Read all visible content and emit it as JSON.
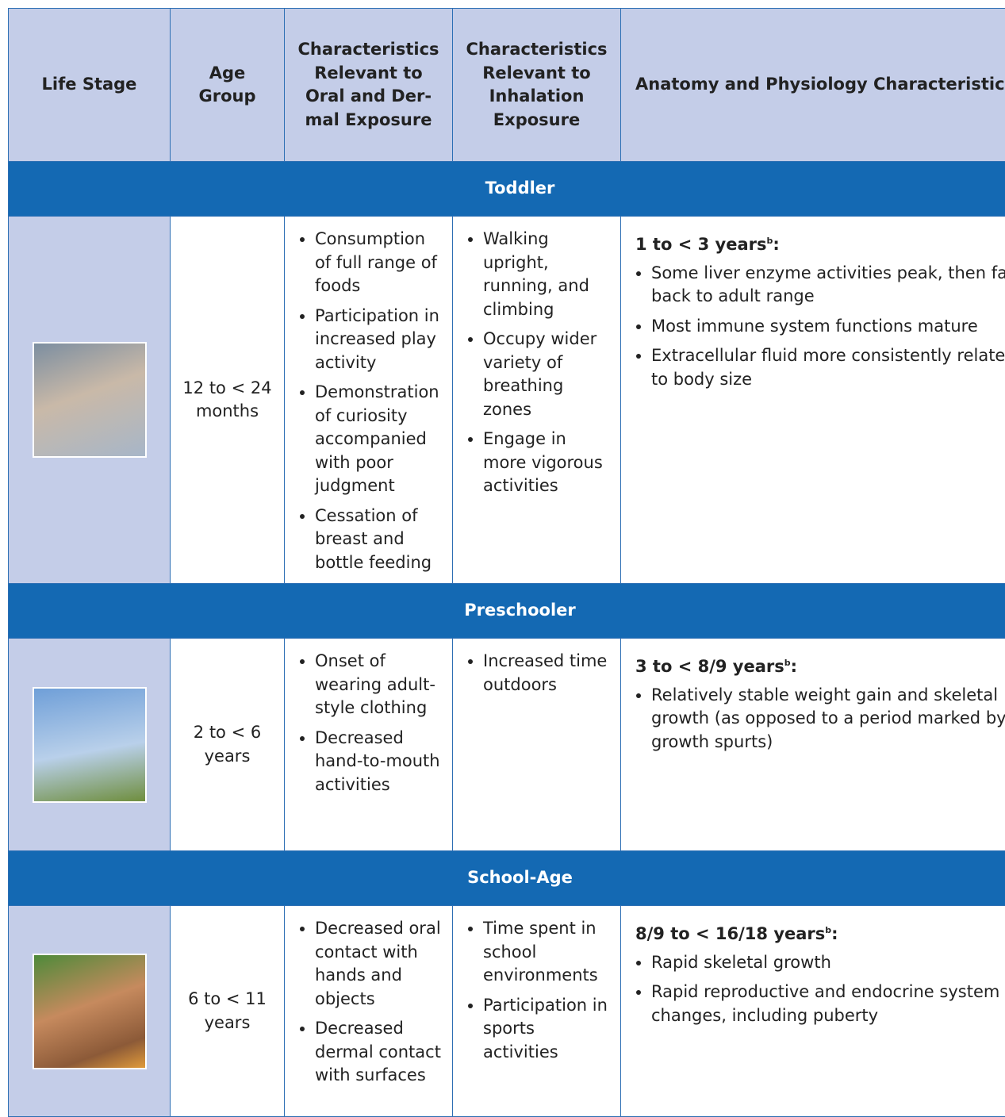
{
  "table": {
    "header": [
      "Life Stage",
      "Age Group",
      "Characteristics Relevant to Oral and Der-mal Exposure",
      "Characteristics Relevant to Inhalation Exposure",
      "Anatomy and Physiology Characteristics"
    ],
    "sections": [
      {
        "title": "Toddler",
        "age_group": "12 to < 24 months",
        "oral_dermal": [
          "Consumption of full range of foods",
          "Participation in increased play activity",
          "Demonstration of curiosity accompanied with poor judgment",
          "Cessation of breast and bottle feeding"
        ],
        "inhalation": [
          "Walking upright, running, and climbing",
          "Occupy wider variety of breathing zones",
          "Engage in more vigorous activities"
        ],
        "anatomy_heading": {
          "text": "1 to < 3 years",
          "note": "b",
          "end": ":"
        },
        "anatomy": [
          "Some liver enzyme activities peak, then fall back to adult range",
          "Most immune system functions mature",
          "Extracellular fluid more consistently related to body size"
        ]
      },
      {
        "title": "Preschooler",
        "age_group": "2 to < 6 years",
        "oral_dermal": [
          "Onset of wearing adult-style clothing",
          "Decreased hand-to-mouth activities"
        ],
        "inhalation": [
          "Increased time outdoors"
        ],
        "anatomy_heading": {
          "text": "3 to < 8/9 years",
          "note": "b",
          "end": ":"
        },
        "anatomy": [
          "Relatively stable weight gain and skeletal growth (as opposed to a period marked by growth spurts)"
        ]
      },
      {
        "title": "School-Age",
        "age_group": "6 to < 11 years",
        "oral_dermal": [
          "Decreased oral contact with hands and objects",
          "Decreased dermal contact with surfaces"
        ],
        "inhalation": [
          "Time spent in school environments",
          "Participation in sports activities"
        ],
        "anatomy_heading": {
          "text": "8/9 to < 16/18 years",
          "note": "b",
          "end": ":"
        },
        "anatomy": [
          "Rapid skeletal growth",
          "Rapid reproductive and endocrine system changes, including puberty"
        ]
      }
    ]
  }
}
